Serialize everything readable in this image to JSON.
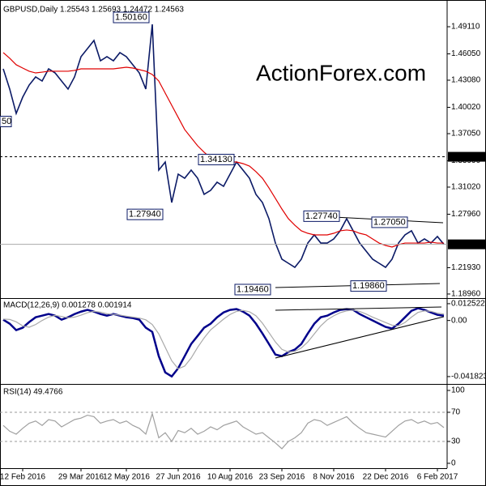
{
  "chart_data": [
    {
      "type": "line",
      "title": "GBPUSD,Daily 1.25543 1.25693 1.24472 1.24563",
      "watermark": "ActionForex.com",
      "categories": [
        null,
        null,
        null,
        "12 Feb 2016",
        null,
        null,
        null,
        null,
        null,
        null,
        null,
        null,
        "29 Mar 2016",
        null,
        null,
        null,
        null,
        null,
        null,
        "12 May 2016",
        null,
        null,
        null,
        null,
        null,
        null,
        null,
        "27 Jun 2016",
        null,
        null,
        null,
        null,
        null,
        null,
        null,
        "10 Aug 2016",
        null,
        null,
        null,
        null,
        null,
        null,
        null,
        "23 Sep 2016",
        null,
        null,
        null,
        null,
        null,
        null,
        null,
        "8 Nov 2016",
        null,
        null,
        null,
        null,
        null,
        null,
        null,
        "22 Dec 2016",
        null,
        null,
        null,
        null,
        null,
        null,
        null,
        "6 Feb 2017",
        null
      ],
      "series": [
        {
          "color": "#0b1a66",
          "values": [
            1.4436,
            1.4208,
            1.3933,
            1.4116,
            1.4253,
            1.4345,
            1.4299,
            1.4436,
            1.439,
            1.4299,
            1.4208,
            1.4345,
            1.4573,
            1.4664,
            1.4756,
            1.4527,
            1.4573,
            1.4527,
            1.4619,
            1.4573,
            1.4482,
            1.439,
            1.4208,
            1.4938,
            1.3294,
            1.3385,
            1.2928,
            1.3248,
            1.3202,
            1.3294,
            1.3202,
            1.302,
            1.3065,
            1.3157,
            1.3111,
            1.3248,
            1.3385,
            1.3294,
            1.3202,
            1.302,
            1.2928,
            1.2746,
            1.2471,
            1.2289,
            1.2243,
            1.2197,
            1.2289,
            1.2471,
            1.2563,
            1.2471,
            1.2471,
            1.2517,
            1.2609,
            1.2746,
            1.2609,
            1.2471,
            1.238,
            1.2289,
            1.2243,
            1.2197,
            1.2289,
            1.2471,
            1.2563,
            1.2609,
            1.2471,
            1.2517,
            1.2471,
            1.2545,
            1.2456
          ]
        },
        {
          "color": "#e00000",
          "values": [
            1.4619,
            1.4555,
            1.4482,
            1.4445,
            1.4409,
            1.439,
            1.4399,
            1.4409,
            1.4409,
            1.4409,
            1.4409,
            1.4418,
            1.4436,
            1.4436,
            1.4436,
            1.4436,
            1.4436,
            1.4436,
            1.4445,
            1.4454,
            1.4445,
            1.4427,
            1.4409,
            1.4372,
            1.4299,
            1.4162,
            1.4025,
            1.3888,
            1.3751,
            1.3659,
            1.3568,
            1.3495,
            1.3431,
            1.3403,
            1.3385,
            1.3385,
            1.3385,
            1.3367,
            1.3339,
            1.3276,
            1.3202,
            1.3093,
            1.2974,
            1.2855,
            1.2746,
            1.2672,
            1.2609,
            1.2581,
            1.2563,
            1.2563,
            1.2563,
            1.2581,
            1.2609,
            1.2618,
            1.2609,
            1.2581,
            1.2563,
            1.2517,
            1.2471,
            1.2444,
            1.2426,
            1.2453,
            1.2471,
            1.2471,
            1.2471,
            1.2471,
            1.2481,
            1.2471,
            1.2471
          ]
        }
      ],
      "ylim": [
        1.185,
        1.5167
      ],
      "yticks": [
        {
          "value": 1.4911,
          "label": "1.49110"
        },
        {
          "value": 1.4605,
          "label": "1.46050"
        },
        {
          "value": 1.4308,
          "label": "1.43080"
        },
        {
          "value": 1.4002,
          "label": "1.40020"
        },
        {
          "value": 1.3705,
          "label": "1.37050"
        },
        {
          "value": 1.3399,
          "label": "1.33990"
        },
        {
          "value": 1.3102,
          "label": "1.31020"
        },
        {
          "value": 1.2796,
          "label": "1.27960"
        },
        {
          "value": 1.2193,
          "label": "1.21930"
        },
        {
          "value": 1.1896,
          "label": "1.18960"
        }
      ],
      "hlines": [
        {
          "value": 1.3444,
          "label": "1.34440",
          "style": "dashed"
        },
        {
          "value": 1.24563,
          "label": "1.24563",
          "style": "solid"
        }
      ],
      "annotations": [
        {
          "value": 1.5016,
          "label": "1.50160"
        },
        {
          "value": 1.3413,
          "label": "1.34130"
        },
        {
          "value": 1.2794,
          "label": "1.27940"
        },
        {
          "value": 1.2774,
          "label": "1.27740"
        },
        {
          "value": 1.2705,
          "label": "1.27050"
        },
        {
          "value": 1.1946,
          "label": "1.19460"
        },
        {
          "value": 1.1986,
          "label": "1.19860"
        },
        {
          "label": "50"
        }
      ]
    },
    {
      "type": "line",
      "title": "MACD(12,26,9) 0.001278 0.001914",
      "series": [
        {
          "color": "#00008b",
          "values": [
            0.0006,
            -0.0024,
            -0.0072,
            -0.0054,
            -0.0012,
            0.0024,
            0.0036,
            0.0048,
            0.0036,
            0.0006,
            0.0024,
            0.0048,
            0.0066,
            0.0079,
            0.0066,
            0.0048,
            0.0036,
            0.0048,
            0.0036,
            0.0024,
            0.0018,
            0.0006,
            -0.0054,
            -0.0085,
            -0.0266,
            -0.0387,
            -0.0417,
            -0.0356,
            -0.0266,
            -0.0175,
            -0.0115,
            -0.0054,
            -0.0024,
            0.0024,
            0.006,
            0.0079,
            0.0085,
            0.0066,
            0.0036,
            -0.0024,
            -0.0097,
            -0.0175,
            -0.0254,
            -0.0266,
            -0.0236,
            -0.0217,
            -0.0175,
            -0.0097,
            -0.0024,
            0.0024,
            0.0036,
            0.006,
            0.0079,
            0.0085,
            0.0079,
            0.0048,
            0.0024,
            0,
            -0.0024,
            -0.0048,
            -0.006,
            -0.0024,
            0.0024,
            0.0072,
            0.0091,
            0.0079,
            0.006,
            0.0042,
            0.0036
          ]
        },
        {
          "color": "#a9a9a9",
          "values": [
            0.001,
            0.0008,
            -0.001,
            -0.004,
            -0.005,
            -0.003,
            0.0,
            0.0025,
            0.0038,
            0.003,
            0.002,
            0.0025,
            0.004,
            0.0058,
            0.0068,
            0.0062,
            0.005,
            0.0045,
            0.004,
            0.0032,
            0.0025,
            0.0018,
            0.0005,
            -0.003,
            -0.01,
            -0.02,
            -0.03,
            -0.036,
            -0.034,
            -0.028,
            -0.02,
            -0.013,
            -0.007,
            -0.003,
            0.001,
            0.0045,
            0.0068,
            0.0075,
            0.0065,
            0.0035,
            -0.002,
            -0.009,
            -0.016,
            -0.0215,
            -0.0235,
            -0.023,
            -0.0205,
            -0.016,
            -0.01,
            -0.004,
            0.0005,
            0.0035,
            0.0058,
            0.0072,
            0.0078,
            0.0068,
            0.0048,
            0.0025,
            0.0005,
            -0.0015,
            -0.0035,
            -0.004,
            -0.0015,
            0.0025,
            0.006,
            0.0072,
            0.0068,
            0.0055,
            0.0048
          ]
        }
      ],
      "ylim": [
        -0.0467,
        0.0161
      ],
      "yticks": [
        0.012522,
        {
          "value": 0,
          "label": "0.00"
        },
        -0.041823
      ]
    },
    {
      "type": "line",
      "title": "RSI(14) 49.4766",
      "series": [
        {
          "color": "#a0a0a0",
          "values": [
            52,
            44,
            40,
            48,
            55,
            58,
            52,
            60,
            58,
            50,
            55,
            60,
            62,
            66,
            64,
            55,
            58,
            60,
            55,
            58,
            52,
            48,
            40,
            68,
            35,
            42,
            30,
            45,
            42,
            48,
            40,
            44,
            50,
            46,
            52,
            55,
            58,
            50,
            45,
            40,
            42,
            35,
            28,
            20,
            30,
            35,
            42,
            55,
            60,
            58,
            52,
            56,
            60,
            64,
            55,
            48,
            42,
            40,
            38,
            36,
            44,
            52,
            58,
            60,
            55,
            58,
            54,
            56,
            49
          ]
        }
      ],
      "ylim": [
        -6.7,
        107.8
      ],
      "yticks": [
        100,
        70,
        30,
        0
      ],
      "levels": [
        70,
        30
      ]
    }
  ]
}
